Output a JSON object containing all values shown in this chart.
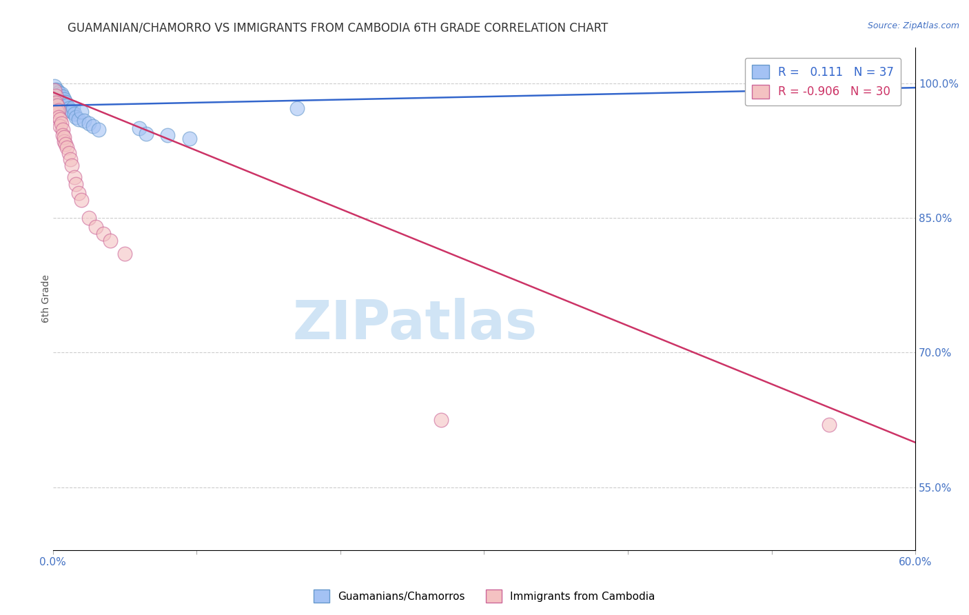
{
  "title": "GUAMANIAN/CHAMORRO VS IMMIGRANTS FROM CAMBODIA 6TH GRADE CORRELATION CHART",
  "source": "Source: ZipAtlas.com",
  "ylabel": "6th Grade",
  "xlim": [
    0.0,
    0.6
  ],
  "ylim": [
    0.48,
    1.04
  ],
  "xticks": [
    0.0,
    0.1,
    0.2,
    0.3,
    0.4,
    0.5,
    0.6
  ],
  "xticklabels": [
    "0.0%",
    "",
    "",
    "",
    "",
    "",
    "60.0%"
  ],
  "yticks_right": [
    1.0,
    0.85,
    0.7,
    0.55
  ],
  "ytick_right_labels": [
    "100.0%",
    "85.0%",
    "70.0%",
    "55.0%"
  ],
  "blue_R": 0.111,
  "blue_N": 37,
  "pink_R": -0.906,
  "pink_N": 30,
  "blue_color": "#a4c2f4",
  "pink_color": "#f4c2c2",
  "blue_edge_color": "#6699cc",
  "pink_edge_color": "#cc6699",
  "blue_line_color": "#3366cc",
  "pink_line_color": "#cc3366",
  "watermark_text": "ZIPatlas",
  "watermark_color": "#d0e4f5",
  "blue_scatter_x": [
    0.001,
    0.002,
    0.002,
    0.003,
    0.003,
    0.003,
    0.004,
    0.004,
    0.005,
    0.005,
    0.006,
    0.006,
    0.006,
    0.007,
    0.007,
    0.008,
    0.008,
    0.009,
    0.01,
    0.011,
    0.012,
    0.013,
    0.014,
    0.015,
    0.016,
    0.018,
    0.02,
    0.022,
    0.025,
    0.028,
    0.032,
    0.06,
    0.065,
    0.08,
    0.095,
    0.17,
    0.53
  ],
  "blue_scatter_y": [
    0.997,
    0.993,
    0.99,
    0.992,
    0.988,
    0.985,
    0.99,
    0.984,
    0.986,
    0.98,
    0.983,
    0.988,
    0.98,
    0.985,
    0.978,
    0.982,
    0.976,
    0.979,
    0.975,
    0.972,
    0.97,
    0.968,
    0.973,
    0.966,
    0.962,
    0.96,
    0.968,
    0.958,
    0.955,
    0.952,
    0.948,
    0.95,
    0.944,
    0.942,
    0.938,
    0.972,
    0.997
  ],
  "pink_scatter_x": [
    0.001,
    0.002,
    0.002,
    0.003,
    0.003,
    0.004,
    0.004,
    0.005,
    0.005,
    0.006,
    0.007,
    0.007,
    0.008,
    0.008,
    0.009,
    0.01,
    0.011,
    0.012,
    0.013,
    0.015,
    0.016,
    0.018,
    0.02,
    0.025,
    0.03,
    0.035,
    0.04,
    0.05,
    0.27,
    0.54
  ],
  "pink_scatter_y": [
    0.992,
    0.986,
    0.978,
    0.975,
    0.968,
    0.97,
    0.962,
    0.96,
    0.952,
    0.955,
    0.948,
    0.942,
    0.935,
    0.94,
    0.932,
    0.928,
    0.922,
    0.915,
    0.908,
    0.895,
    0.888,
    0.878,
    0.87,
    0.85,
    0.84,
    0.832,
    0.825,
    0.81,
    0.625,
    0.62
  ],
  "background_color": "#ffffff",
  "grid_color": "#cccccc"
}
